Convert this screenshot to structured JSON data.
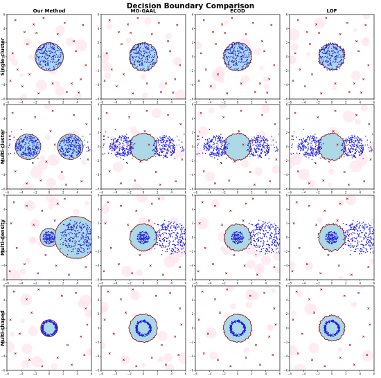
{
  "chart_data": {
    "type": "scatter",
    "title": "Decision Boundary Comparison",
    "columns": [
      "Our Method",
      "MO-GAAL",
      "ECOD",
      "LOF"
    ],
    "rows": [
      "Single-cluster",
      "Multi-cluster",
      "Multi-density",
      "Multi-shaped"
    ],
    "xlim": [
      -6,
      6
    ],
    "ylim": [
      -6,
      6
    ],
    "xticks": [
      -6,
      -4,
      -2,
      0,
      2,
      4,
      6
    ],
    "yticks": [
      -6,
      -4,
      -2,
      0,
      2,
      4,
      6
    ],
    "tick_labels": [
      "−6",
      "−4",
      "−2",
      "0",
      "2",
      "4",
      "6"
    ],
    "grid": false,
    "legend": "none",
    "colors": {
      "inlier": "#1f1fe0",
      "outlier": "#b22222",
      "boundary": "#8b1a1a",
      "normal_region": "#add8e6",
      "anomaly_region": "#ffe4ec"
    },
    "series": [
      {
        "marker": "dot",
        "role": "inliers"
      },
      {
        "marker": "x",
        "role": "outliers"
      }
    ],
    "datasets": {
      "single": {
        "inlier_clusters": [
          {
            "cx": 0,
            "cy": 0,
            "r": 2.0
          }
        ],
        "outliers": [
          [
            -4.8,
            5.2
          ],
          [
            -3.5,
            3.5
          ],
          [
            -2.2,
            4.6
          ],
          [
            -1.8,
            3.4
          ],
          [
            -5.2,
            0.5
          ],
          [
            3.5,
            2.2
          ],
          [
            4.8,
            4.5
          ],
          [
            2.2,
            4.8
          ],
          [
            4.5,
            -3.2
          ],
          [
            3.2,
            -3.8
          ],
          [
            -3.8,
            -4.2
          ],
          [
            -1.5,
            -5.2
          ],
          [
            -4.5,
            -1.8
          ],
          [
            5.2,
            -1.2
          ],
          [
            2.5,
            -5.0
          ],
          [
            -0.8,
            5.5
          ],
          [
            3.8,
            0.8
          ],
          [
            -2.8,
            -2.5
          ],
          [
            1.2,
            3.2
          ],
          [
            -5.5,
            -3.4
          ],
          [
            4.2,
            -5.1
          ],
          [
            0.5,
            -3.8
          ],
          [
            -3.1,
            1.8
          ]
        ]
      },
      "multi_cluster": {
        "inlier_clusters": [
          {
            "cx": -3,
            "cy": 0,
            "r": 1.6
          },
          {
            "cx": 3,
            "cy": 0,
            "r": 1.6
          }
        ],
        "outliers": [
          [
            -5.2,
            4.8
          ],
          [
            -2.0,
            4.2
          ],
          [
            0.5,
            5.1
          ],
          [
            3.5,
            4.5
          ],
          [
            5.3,
            3.2
          ],
          [
            -4.8,
            -3.5
          ],
          [
            -1.2,
            -4.8
          ],
          [
            1.8,
            -3.6
          ],
          [
            4.6,
            -4.9
          ],
          [
            0.2,
            2.2
          ],
          [
            -0.4,
            -2.1
          ],
          [
            5.5,
            -1.8
          ],
          [
            -5.6,
            1.5
          ],
          [
            2.4,
            -5.4
          ],
          [
            -3.2,
            -5.2
          ],
          [
            0.8,
            0.3
          ]
        ]
      },
      "multi_density": {
        "inlier_clusters": [
          {
            "cx": 0,
            "cy": 0,
            "r": 0.9
          },
          {
            "cx": 4,
            "cy": 0,
            "r": 2.3
          }
        ],
        "outliers": [
          [
            -5.0,
            5.0
          ],
          [
            -3.2,
            4.5
          ],
          [
            -1.0,
            3.8
          ],
          [
            1.2,
            4.8
          ],
          [
            -5.4,
            2.0
          ],
          [
            -4.6,
            -1.5
          ],
          [
            -3.5,
            -3.8
          ],
          [
            -1.6,
            -5.1
          ],
          [
            1.0,
            -4.0
          ],
          [
            2.8,
            -5.3
          ],
          [
            5.2,
            -4.2
          ],
          [
            -2.2,
            1.8
          ],
          [
            -0.5,
            -2.5
          ],
          [
            0.8,
            2.4
          ],
          [
            -5.6,
            -4.8
          ],
          [
            2.2,
            5.5
          ]
        ]
      },
      "multi_shaped": {
        "inlier_clusters": [
          {
            "cx": 0,
            "cy": 0,
            "ring": 1.0
          }
        ],
        "outliers": [
          [
            -5.0,
            5.2
          ],
          [
            -3.2,
            4.1
          ],
          [
            -1.5,
            5.5
          ],
          [
            1.8,
            4.6
          ],
          [
            3.8,
            5.0
          ],
          [
            5.2,
            2.8
          ],
          [
            -5.5,
            1.2
          ],
          [
            -4.2,
            -0.8
          ],
          [
            4.5,
            -1.2
          ],
          [
            5.4,
            0.5
          ],
          [
            -4.8,
            -3.6
          ],
          [
            -2.8,
            -4.5
          ],
          [
            -1.0,
            -5.4
          ],
          [
            1.2,
            -4.2
          ],
          [
            3.2,
            -5.2
          ],
          [
            5.0,
            -3.8
          ],
          [
            -2.5,
            2.2
          ],
          [
            2.6,
            -2.4
          ]
        ]
      }
    },
    "panels": [
      {
        "row": 0,
        "col": 0,
        "dataset": "single",
        "regions": [
          {
            "cx": 0,
            "cy": 0,
            "r": 2.0,
            "rough": 0.03
          }
        ]
      },
      {
        "row": 0,
        "col": 1,
        "dataset": "single",
        "regions": [
          {
            "cx": 0,
            "cy": 0,
            "r": 2.0,
            "rough": 0.1
          }
        ]
      },
      {
        "row": 0,
        "col": 2,
        "dataset": "single",
        "regions": [
          {
            "cx": 0,
            "cy": 0,
            "r": 2.0,
            "rough": 0.12
          }
        ]
      },
      {
        "row": 0,
        "col": 3,
        "dataset": "single",
        "regions": [
          {
            "cx": 0,
            "cy": 0,
            "r": 1.8,
            "rough": 0.15
          }
        ]
      },
      {
        "row": 1,
        "col": 0,
        "dataset": "multi_cluster",
        "regions": [
          {
            "cx": -3,
            "cy": 0,
            "r": 1.8,
            "rough": 0.04
          },
          {
            "cx": 3,
            "cy": 0,
            "r": 1.8,
            "rough": 0.04
          }
        ]
      },
      {
        "row": 1,
        "col": 1,
        "dataset": "multi_cluster",
        "regions": [
          {
            "cx": 0,
            "cy": 0,
            "r": 1.9,
            "rough": 0.1
          }
        ]
      },
      {
        "row": 1,
        "col": 2,
        "dataset": "multi_cluster",
        "regions": [
          {
            "cx": 0,
            "cy": 0,
            "r": 1.9,
            "rough": 0.1
          }
        ]
      },
      {
        "row": 1,
        "col": 3,
        "dataset": "multi_cluster",
        "regions": [
          {
            "cx": 0,
            "cy": 0,
            "r": 1.9,
            "rough": 0.14
          }
        ]
      },
      {
        "row": 2,
        "col": 0,
        "dataset": "multi_density",
        "regions": [
          {
            "cx": 0,
            "cy": 0,
            "r": 1.3,
            "rough": 0.03
          },
          {
            "cx": 3.8,
            "cy": 0,
            "r": 3.0,
            "rough": 0.03
          }
        ]
      },
      {
        "row": 2,
        "col": 1,
        "dataset": "multi_density",
        "regions": [
          {
            "cx": 0,
            "cy": 0,
            "r": 1.9,
            "rough": 0.1
          }
        ]
      },
      {
        "row": 2,
        "col": 2,
        "dataset": "multi_density",
        "regions": [
          {
            "cx": 0,
            "cy": 0,
            "r": 1.9,
            "rough": 0.1
          }
        ]
      },
      {
        "row": 2,
        "col": 3,
        "dataset": "multi_density",
        "regions": [
          {
            "cx": 0,
            "cy": 0,
            "r": 1.9,
            "rough": 0.14
          }
        ]
      },
      {
        "row": 3,
        "col": 0,
        "dataset": "multi_shaped",
        "regions": [
          {
            "cx": 0,
            "cy": 0,
            "r": 1.2,
            "rough": 0.02
          }
        ]
      },
      {
        "row": 3,
        "col": 1,
        "dataset": "multi_shaped",
        "regions": [
          {
            "cx": 0,
            "cy": 0,
            "r": 2.0,
            "rough": 0.08
          }
        ]
      },
      {
        "row": 3,
        "col": 2,
        "dataset": "multi_shaped",
        "regions": [
          {
            "cx": 0,
            "cy": 0,
            "r": 2.0,
            "rough": 0.08
          }
        ]
      },
      {
        "row": 3,
        "col": 3,
        "dataset": "multi_shaped",
        "regions": [
          {
            "cx": 0,
            "cy": 0,
            "r": 1.8,
            "rough": 0.12
          }
        ]
      }
    ]
  }
}
